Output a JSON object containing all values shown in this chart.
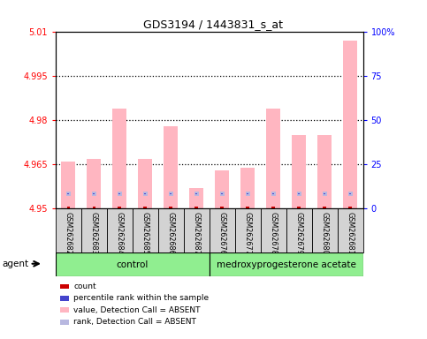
{
  "title": "GDS3194 / 1443831_s_at",
  "samples": [
    "GSM262682",
    "GSM262683",
    "GSM262684",
    "GSM262685",
    "GSM262686",
    "GSM262687",
    "GSM262676",
    "GSM262677",
    "GSM262678",
    "GSM262679",
    "GSM262680",
    "GSM262681"
  ],
  "values": [
    4.966,
    4.967,
    4.984,
    4.967,
    4.978,
    4.957,
    4.963,
    4.964,
    4.984,
    4.975,
    4.975,
    5.007
  ],
  "ymin": 4.95,
  "ymax": 5.01,
  "yticks": [
    4.95,
    4.965,
    4.98,
    4.995,
    5.01
  ],
  "ytick_labels": [
    "4.95",
    "4.965",
    "4.98",
    "4.995",
    "5.01"
  ],
  "right_yticks_pct": [
    0,
    25,
    50,
    75,
    100
  ],
  "bar_color_absent": "#FFB6C1",
  "rank_color_absent": "#B8B8E0",
  "count_color": "#CC0000",
  "rank_dot_color": "#4444CC",
  "sample_box_color": "#D3D3D3",
  "group_color": "#90EE90",
  "control_label": "control",
  "med_label": "medroxyprogesterone acetate",
  "agent_label": "agent",
  "legend_items": [
    {
      "label": "count",
      "color": "#CC0000"
    },
    {
      "label": "percentile rank within the sample",
      "color": "#4444CC"
    },
    {
      "label": "value, Detection Call = ABSENT",
      "color": "#FFB6C1"
    },
    {
      "label": "rank, Detection Call = ABSENT",
      "color": "#B8B8E0"
    }
  ]
}
